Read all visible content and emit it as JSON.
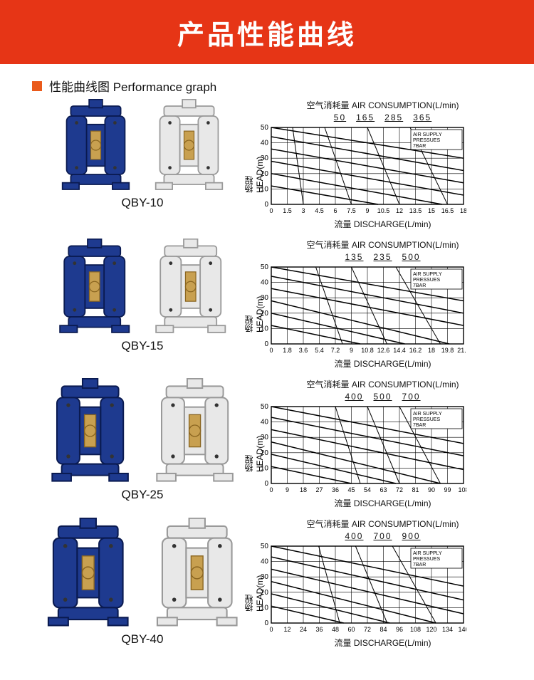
{
  "banner_title": "产品性能曲线",
  "section_title": "性能曲线图  Performance graph",
  "charts": [
    {
      "model": "QBY-10",
      "top_label": "空气消耗量 AIR CONSUMPTION(L/min)",
      "air_values": [
        "50",
        "165",
        "285",
        "365"
      ],
      "y_label": "扬程 HEAD(m)",
      "x_label": "流量 DISCHARGE(L/min)",
      "legend": "AIR SUPPLY\nPRESSUES\n7BAR",
      "y_ticks": [
        "0",
        "10",
        "20",
        "30",
        "40",
        "50"
      ],
      "x_ticks": [
        "0",
        "1.5",
        "3",
        "4.5",
        "6",
        "7.5",
        "9",
        "10.5",
        "12",
        "13.5",
        "15",
        "16.5",
        "18"
      ],
      "ylim": [
        0,
        50
      ],
      "xlim": [
        0,
        18
      ],
      "pressure_curves": [
        [
          [
            0,
            50
          ],
          [
            18,
            30
          ]
        ],
        [
          [
            0,
            44
          ],
          [
            18,
            22
          ]
        ],
        [
          [
            0,
            36
          ],
          [
            18,
            14
          ]
        ],
        [
          [
            0,
            28
          ],
          [
            18,
            6
          ]
        ],
        [
          [
            0,
            20
          ],
          [
            16,
            0
          ]
        ],
        [
          [
            0,
            12
          ],
          [
            10,
            0
          ]
        ]
      ],
      "air_curves": [
        [
          [
            2,
            50
          ],
          [
            3,
            0
          ]
        ],
        [
          [
            5,
            50
          ],
          [
            7.5,
            0
          ]
        ],
        [
          [
            9,
            50
          ],
          [
            12,
            0
          ]
        ],
        [
          [
            13,
            50
          ],
          [
            16.5,
            0
          ]
        ]
      ],
      "bg": "#ffffff",
      "grid": "#000000",
      "line": "#000000"
    },
    {
      "model": "QBY-15",
      "top_label": "空气消耗量 AIR CONSUMPTION(L/min)",
      "air_values": [
        "135",
        "235",
        "500"
      ],
      "y_label": "扬程 HEAD(m)",
      "x_label": "流量 DISCHARGE(L/min)",
      "legend": "AIR SUPPLY\nPRESSUES\n7BAR",
      "y_ticks": [
        "0",
        "10",
        "20",
        "30",
        "40",
        "50"
      ],
      "x_ticks": [
        "0",
        "1.8",
        "3.6",
        "5.4",
        "7.2",
        "9",
        "10.8",
        "12.6",
        "14.4",
        "16.2",
        "18",
        "19.8",
        "21.6"
      ],
      "ylim": [
        0,
        50
      ],
      "xlim": [
        0,
        21.6
      ],
      "pressure_curves": [
        [
          [
            0,
            50
          ],
          [
            21.6,
            28
          ]
        ],
        [
          [
            0,
            44
          ],
          [
            21.6,
            20
          ]
        ],
        [
          [
            0,
            36
          ],
          [
            21.6,
            12
          ]
        ],
        [
          [
            0,
            28
          ],
          [
            20,
            0
          ]
        ],
        [
          [
            0,
            20
          ],
          [
            15,
            0
          ]
        ],
        [
          [
            0,
            12
          ],
          [
            10,
            0
          ]
        ]
      ],
      "air_curves": [
        [
          [
            5,
            50
          ],
          [
            8,
            0
          ]
        ],
        [
          [
            9,
            50
          ],
          [
            13,
            0
          ]
        ],
        [
          [
            14,
            50
          ],
          [
            19,
            0
          ]
        ]
      ],
      "bg": "#ffffff",
      "grid": "#000000",
      "line": "#000000"
    },
    {
      "model": "QBY-25",
      "top_label": "空气消耗量 AIR CONSUMPTION(L/min)",
      "air_values": [
        "400",
        "500",
        "700"
      ],
      "y_label": "扬程 HEAD(m)",
      "x_label": "流量 DISCHARGE(L/min)",
      "legend": "AIR SUPPLY\nPRESSUES\n7BAR",
      "y_ticks": [
        "0",
        "10",
        "20",
        "30",
        "40",
        "50"
      ],
      "x_ticks": [
        "0",
        "9",
        "18",
        "27",
        "36",
        "45",
        "54",
        "63",
        "72",
        "81",
        "90",
        "99",
        "108"
      ],
      "ylim": [
        0,
        50
      ],
      "xlim": [
        0,
        108
      ],
      "pressure_curves": [
        [
          [
            0,
            50
          ],
          [
            108,
            26
          ]
        ],
        [
          [
            0,
            43
          ],
          [
            108,
            18
          ]
        ],
        [
          [
            0,
            35
          ],
          [
            108,
            9
          ]
        ],
        [
          [
            0,
            27
          ],
          [
            95,
            0
          ]
        ],
        [
          [
            0,
            19
          ],
          [
            70,
            0
          ]
        ],
        [
          [
            0,
            11
          ],
          [
            45,
            0
          ]
        ]
      ],
      "air_curves": [
        [
          [
            36,
            50
          ],
          [
            50,
            0
          ]
        ],
        [
          [
            54,
            50
          ],
          [
            72,
            0
          ]
        ],
        [
          [
            72,
            50
          ],
          [
            95,
            0
          ]
        ]
      ],
      "bg": "#ffffff",
      "grid": "#000000",
      "line": "#000000"
    },
    {
      "model": "QBY-40",
      "top_label": "空气消耗量 AIR CONSUMPTION(L/min)",
      "air_values": [
        "400",
        "700",
        "900"
      ],
      "y_label": "扬程 HEAD(m)",
      "x_label": "流量 DISCHARGE(L/min)",
      "legend": "AIR SUPPLY\nPRESSUES\n7BAR",
      "y_ticks": [
        "0",
        "10",
        "20",
        "30",
        "40",
        "50"
      ],
      "x_ticks": [
        "0",
        "12",
        "24",
        "36",
        "48",
        "60",
        "72",
        "84",
        "96",
        "108",
        "120",
        "134",
        "146"
      ],
      "ylim": [
        0,
        50
      ],
      "xlim": [
        0,
        146
      ],
      "pressure_curves": [
        [
          [
            0,
            50
          ],
          [
            146,
            24
          ]
        ],
        [
          [
            0,
            43
          ],
          [
            146,
            15
          ]
        ],
        [
          [
            0,
            35
          ],
          [
            146,
            6
          ]
        ],
        [
          [
            0,
            27
          ],
          [
            125,
            0
          ]
        ],
        [
          [
            0,
            19
          ],
          [
            90,
            0
          ]
        ],
        [
          [
            0,
            11
          ],
          [
            55,
            0
          ]
        ]
      ],
      "air_curves": [
        [
          [
            36,
            50
          ],
          [
            52,
            0
          ]
        ],
        [
          [
            64,
            50
          ],
          [
            88,
            0
          ]
        ],
        [
          [
            92,
            50
          ],
          [
            125,
            0
          ]
        ]
      ],
      "bg": "#ffffff",
      "grid": "#000000",
      "line": "#000000"
    }
  ],
  "colors": {
    "banner": "#e63516",
    "accent": "#ea5a1b",
    "pump_blue": "#1e3a8f",
    "pump_white": "#e8e8e8",
    "brass": "#c8a050"
  }
}
